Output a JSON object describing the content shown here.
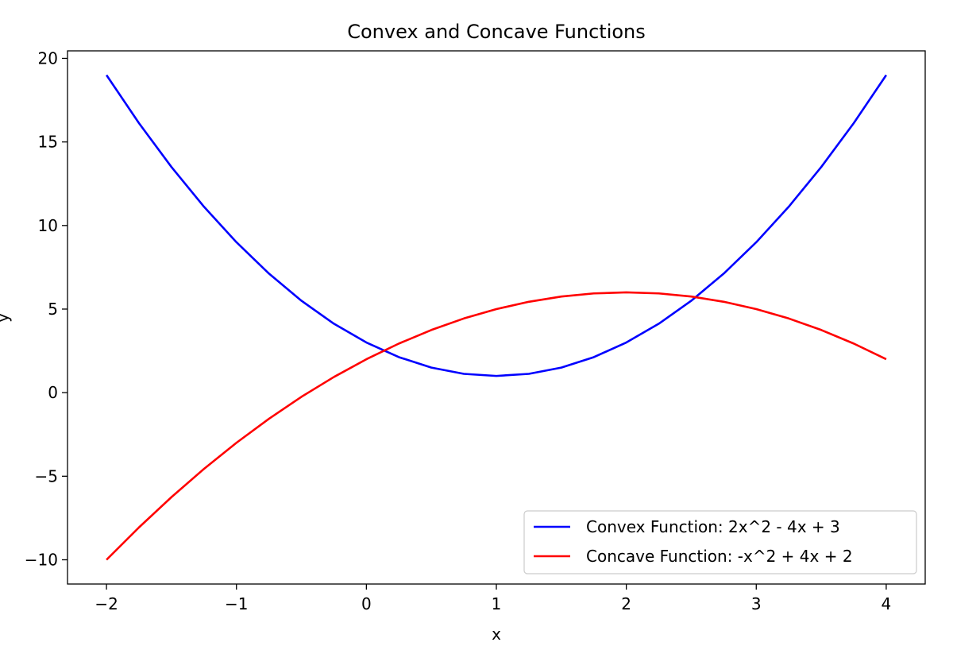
{
  "chart_data": {
    "type": "line",
    "title": "Convex and Concave Functions",
    "xlabel": "x",
    "ylabel": "y",
    "xlim": [
      -2.3,
      4.3
    ],
    "ylim": [
      -11.45,
      20.45
    ],
    "xticks": [
      -2,
      -1,
      0,
      1,
      2,
      3,
      4
    ],
    "xtick_labels": [
      "−2",
      "−1",
      "0",
      "1",
      "2",
      "3",
      "4"
    ],
    "yticks": [
      -10,
      -5,
      0,
      5,
      10,
      15,
      20
    ],
    "ytick_labels": [
      "−10",
      "−5",
      "0",
      "5",
      "10",
      "15",
      "20"
    ],
    "grid": false,
    "legend_position": "lower-right",
    "series": [
      {
        "name": "Convex Function: 2x^2 - 4x + 3",
        "color": "#0000ff",
        "x": [
          -2,
          -1.75,
          -1.5,
          -1.25,
          -1,
          -0.75,
          -0.5,
          -0.25,
          0,
          0.25,
          0.5,
          0.75,
          1,
          1.25,
          1.5,
          1.75,
          2,
          2.25,
          2.5,
          2.75,
          3,
          3.25,
          3.5,
          3.75,
          4
        ],
        "y": [
          19,
          16.125,
          13.5,
          11.125,
          9,
          7.125,
          5.5,
          4.125,
          3,
          2.125,
          1.5,
          1.125,
          1,
          1.125,
          1.5,
          2.125,
          3,
          4.125,
          5.5,
          7.125,
          9,
          11.125,
          13.5,
          16.125,
          19
        ]
      },
      {
        "name": "Concave Function: -x^2 + 4x + 2",
        "color": "#ff0000",
        "x": [
          -2,
          -1.75,
          -1.5,
          -1.25,
          -1,
          -0.75,
          -0.5,
          -0.25,
          0,
          0.25,
          0.5,
          0.75,
          1,
          1.25,
          1.5,
          1.75,
          2,
          2.25,
          2.5,
          2.75,
          3,
          3.25,
          3.5,
          3.75,
          4
        ],
        "y": [
          -10,
          -8.0625,
          -6.25,
          -4.5625,
          -3,
          -1.5625,
          -0.25,
          0.9375,
          2,
          2.9375,
          3.75,
          4.4375,
          5,
          5.4375,
          5.75,
          5.9375,
          6,
          5.9375,
          5.75,
          5.4375,
          5,
          4.4375,
          3.75,
          2.9375,
          2
        ]
      }
    ]
  }
}
